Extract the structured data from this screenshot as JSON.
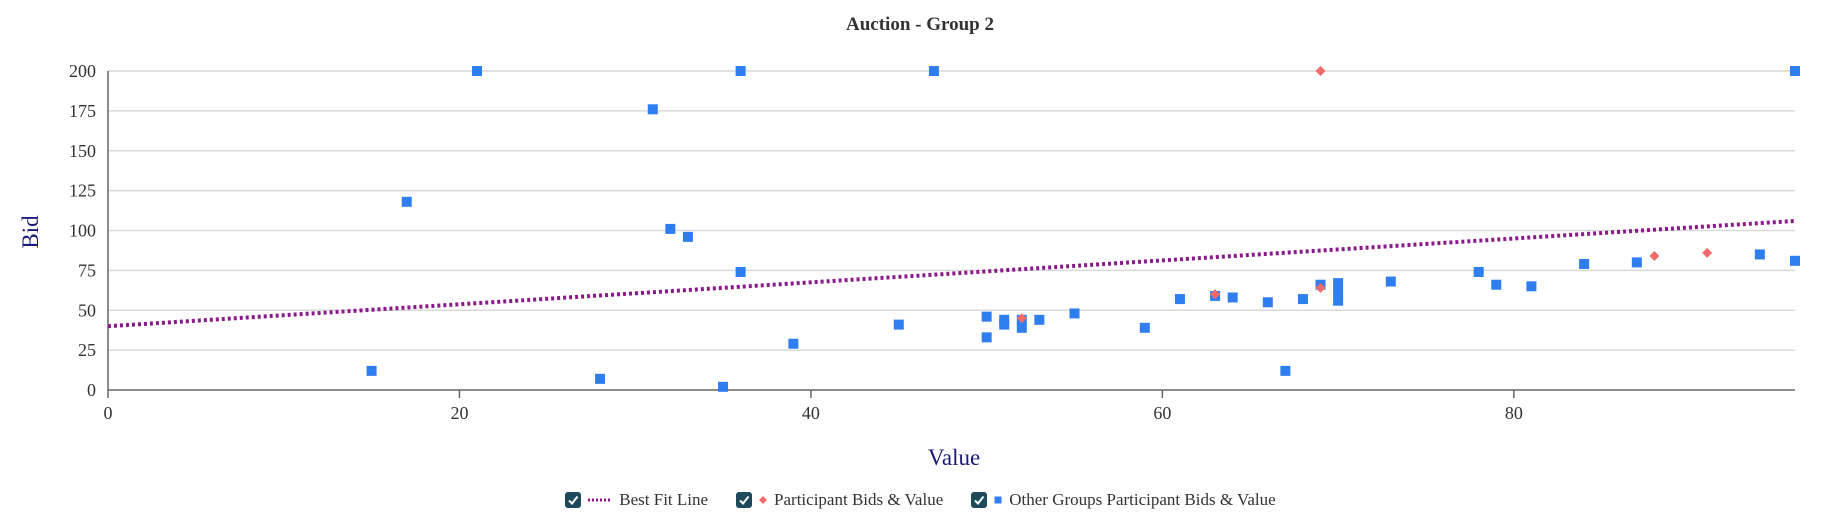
{
  "chart_data": {
    "type": "scatter",
    "title": "Auction - Group 2",
    "xlabel": "Value",
    "ylabel": "Bid",
    "xlim": [
      0,
      96
    ],
    "ylim": [
      0,
      200
    ],
    "x_ticks": [
      "0",
      "20",
      "40",
      "60",
      "80"
    ],
    "y_ticks": [
      "0",
      "25",
      "50",
      "75",
      "100",
      "125",
      "150",
      "175",
      "200"
    ],
    "grid": true,
    "legend_position": "bottom",
    "best_fit_line": {
      "name": "Best Fit Line",
      "color": "#8b1a89",
      "points": [
        [
          0,
          40
        ],
        [
          96,
          106
        ]
      ]
    },
    "series": [
      {
        "name": "Participant Bids & Value",
        "marker": "diamond",
        "color": "#f26b6b",
        "points": [
          [
            52,
            45
          ],
          [
            63,
            60
          ],
          [
            69,
            64
          ],
          [
            69,
            200
          ],
          [
            88,
            84
          ],
          [
            91,
            86
          ]
        ]
      },
      {
        "name": "Other Groups Participant Bids & Value",
        "marker": "square",
        "color": "#2f7ef0",
        "points": [
          [
            15,
            12
          ],
          [
            17,
            118
          ],
          [
            21,
            200
          ],
          [
            28,
            7
          ],
          [
            31,
            176
          ],
          [
            32,
            101
          ],
          [
            33,
            96
          ],
          [
            35,
            2
          ],
          [
            36,
            200
          ],
          [
            36,
            74
          ],
          [
            39,
            29
          ],
          [
            45,
            41
          ],
          [
            47,
            200
          ],
          [
            50,
            46
          ],
          [
            50,
            33
          ],
          [
            51,
            44
          ],
          [
            51,
            41
          ],
          [
            52,
            44
          ],
          [
            52,
            39
          ],
          [
            53,
            44
          ],
          [
            55,
            48
          ],
          [
            59,
            39
          ],
          [
            61,
            57
          ],
          [
            63,
            59
          ],
          [
            64,
            58
          ],
          [
            66,
            55
          ],
          [
            67,
            12
          ],
          [
            68,
            57
          ],
          [
            69,
            66
          ],
          [
            70,
            67
          ],
          [
            70,
            61
          ],
          [
            70,
            56
          ],
          [
            73,
            68
          ],
          [
            78,
            74
          ],
          [
            79,
            66
          ],
          [
            81,
            65
          ],
          [
            84,
            79
          ],
          [
            87,
            80
          ],
          [
            94,
            85
          ],
          [
            96,
            81
          ],
          [
            96,
            200
          ]
        ]
      }
    ]
  },
  "legend": {
    "items": [
      {
        "label": "Best Fit Line",
        "checked": true
      },
      {
        "label": "Participant Bids & Value",
        "checked": true
      },
      {
        "label": "Other Groups Participant Bids & Value",
        "checked": true
      }
    ]
  }
}
